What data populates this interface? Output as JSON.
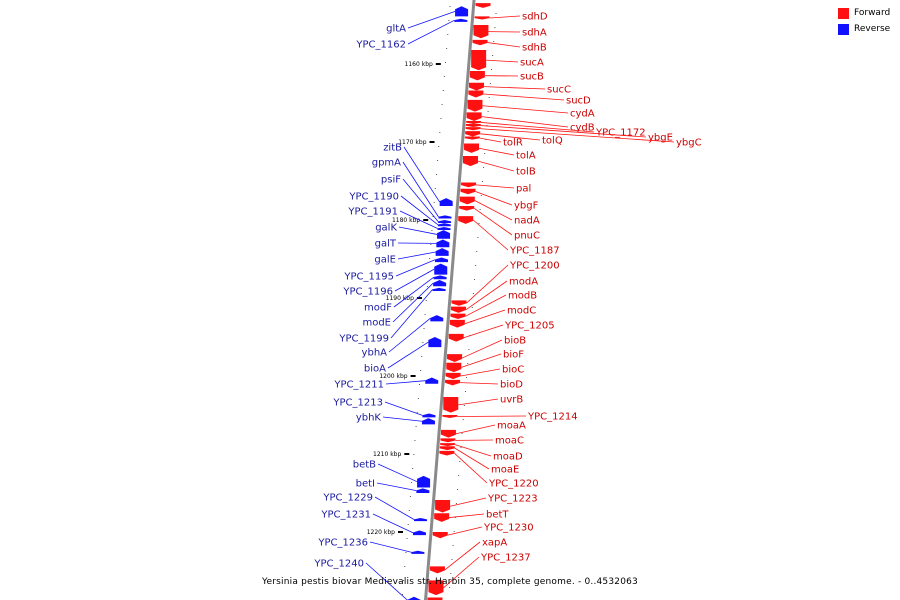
{
  "colors": {
    "forward": "#ff1111",
    "reverse": "#1111ff",
    "forward_label": "#cc0000",
    "reverse_label": "#1a1aa0",
    "backbone": "#8a8a8a"
  },
  "legend": [
    {
      "label": "Forward",
      "color": "#ff1111"
    },
    {
      "label": "Reverse",
      "color": "#1111ff"
    }
  ],
  "caption": "Yersinia pestis biovar Medievalis str. Harbin 35, complete genome. - 0..4532063",
  "ruler": [
    {
      "label": "1160 kbp",
      "kbp": 1160
    },
    {
      "label": "1170 kbp",
      "kbp": 1170
    },
    {
      "label": "1180 kbp",
      "kbp": 1180
    },
    {
      "label": "1190 kbp",
      "kbp": 1190
    },
    {
      "label": "1200 kbp",
      "kbp": 1200
    },
    {
      "label": "1210 kbp",
      "kbp": 1210
    },
    {
      "label": "1220 kbp",
      "kbp": 1220
    }
  ],
  "forward_genes": [
    {
      "name": "",
      "kbp": 1152.2,
      "len": 0.6
    },
    {
      "name": "sdhD",
      "kbp": 1153.9,
      "len": 0.4
    },
    {
      "name": "sdhA",
      "kbp": 1155.0,
      "len": 1.7
    },
    {
      "name": "sdhB",
      "kbp": 1156.9,
      "len": 0.7
    },
    {
      "name": "sucA",
      "kbp": 1158.2,
      "len": 2.6
    },
    {
      "name": "sucB",
      "kbp": 1160.9,
      "len": 1.2
    },
    {
      "name": "sucC",
      "kbp": 1162.4,
      "len": 1.0
    },
    {
      "name": "sucD",
      "kbp": 1163.4,
      "len": 0.9
    },
    {
      "name": "cydA",
      "kbp": 1164.6,
      "len": 1.5
    },
    {
      "name": "cydB",
      "kbp": 1166.2,
      "len": 1.1
    },
    {
      "name": "YPC_1172",
      "kbp": 1167.3,
      "len": 0.3
    },
    {
      "name": "ybgE",
      "kbp": 1167.7,
      "len": 0.3
    },
    {
      "name": "ybgC",
      "kbp": 1168.1,
      "len": 0.4
    },
    {
      "name": "tolQ",
      "kbp": 1168.6,
      "len": 0.7
    },
    {
      "name": "tolR",
      "kbp": 1169.3,
      "len": 0.4
    },
    {
      "name": "tolA",
      "kbp": 1170.2,
      "len": 1.2
    },
    {
      "name": "tolB",
      "kbp": 1171.8,
      "len": 1.3
    },
    {
      "name": "pal",
      "kbp": 1175.2,
      "len": 0.6
    },
    {
      "name": "ybgF",
      "kbp": 1176.0,
      "len": 0.7
    },
    {
      "name": "nadA",
      "kbp": 1177.0,
      "len": 1.0
    },
    {
      "name": "pnuC",
      "kbp": 1178.2,
      "len": 0.6
    },
    {
      "name": "YPC_1187",
      "kbp": 1179.5,
      "len": 1.0
    },
    {
      "name": "YPC_1200",
      "kbp": 1190.3,
      "len": 0.7
    },
    {
      "name": "modA",
      "kbp": 1191.1,
      "len": 0.8
    },
    {
      "name": "modB",
      "kbp": 1192.0,
      "len": 0.7
    },
    {
      "name": "modC",
      "kbp": 1192.8,
      "len": 1.0
    },
    {
      "name": "YPC_1205",
      "kbp": 1194.6,
      "len": 1.0
    },
    {
      "name": "bioB",
      "kbp": 1197.2,
      "len": 1.0
    },
    {
      "name": "bioF",
      "kbp": 1198.3,
      "len": 1.2
    },
    {
      "name": "bioC",
      "kbp": 1199.6,
      "len": 0.8
    },
    {
      "name": "bioD",
      "kbp": 1200.5,
      "len": 0.7
    },
    {
      "name": "uvrB",
      "kbp": 1202.7,
      "len": 2.0
    },
    {
      "name": "YPC_1214",
      "kbp": 1205.0,
      "len": 0.2
    },
    {
      "name": "moaA",
      "kbp": 1206.9,
      "len": 1.0
    },
    {
      "name": "moaC",
      "kbp": 1208.0,
      "len": 0.5
    },
    {
      "name": "moaD",
      "kbp": 1208.6,
      "len": 0.3
    },
    {
      "name": "moaE",
      "kbp": 1209.0,
      "len": 0.5
    },
    {
      "name": "YPC_1220",
      "kbp": 1209.6,
      "len": 0.6
    },
    {
      "name": "YPC_1223",
      "kbp": 1215.9,
      "len": 1.6
    },
    {
      "name": "betT",
      "kbp": 1217.6,
      "len": 1.1
    },
    {
      "name": "YPC_1230",
      "kbp": 1220.0,
      "len": 0.8
    },
    {
      "name": "xapA",
      "kbp": 1224.4,
      "len": 0.9
    },
    {
      "name": "YPC_1237",
      "kbp": 1226.2,
      "len": 1.9
    },
    {
      "name": "",
      "kbp": 1228.4,
      "len": 0.8
    }
  ],
  "reverse_genes": [
    {
      "name": "gltA",
      "kbp": 1152.6,
      "len": 1.3
    },
    {
      "name": "YPC_1162",
      "kbp": 1154.2,
      "len": 0.4
    },
    {
      "name": "zitB",
      "kbp": 1177.2,
      "len": 1.0
    },
    {
      "name": "gpmA",
      "kbp": 1179.4,
      "len": 0.4
    },
    {
      "name": "psiF",
      "kbp": 1180.0,
      "len": 0.3
    },
    {
      "name": "YPC_1190",
      "kbp": 1180.4,
      "len": 0.4
    },
    {
      "name": "YPC_1191",
      "kbp": 1180.9,
      "len": 0.3
    },
    {
      "name": "galK",
      "kbp": 1181.3,
      "len": 1.1
    },
    {
      "name": "galT",
      "kbp": 1182.5,
      "len": 1.0
    },
    {
      "name": "galE",
      "kbp": 1183.6,
      "len": 1.0
    },
    {
      "name": "YPC_1195",
      "kbp": 1184.8,
      "len": 0.6
    },
    {
      "name": "YPC_1196",
      "kbp": 1185.6,
      "len": 1.4
    },
    {
      "name": "modF",
      "kbp": 1187.1,
      "len": 0.5
    },
    {
      "name": "modE",
      "kbp": 1187.7,
      "len": 0.8
    },
    {
      "name": "YPC_1199",
      "kbp": 1188.7,
      "len": 0.4
    },
    {
      "name": "ybhA",
      "kbp": 1192.2,
      "len": 0.8
    },
    {
      "name": "bioA",
      "kbp": 1195.0,
      "len": 1.3
    },
    {
      "name": "YPC_1211",
      "kbp": 1200.2,
      "len": 0.8
    },
    {
      "name": "YPC_1213",
      "kbp": 1204.8,
      "len": 0.5
    },
    {
      "name": "ybhK",
      "kbp": 1205.4,
      "len": 0.8
    },
    {
      "name": "betB",
      "kbp": 1212.8,
      "len": 1.5
    },
    {
      "name": "betI",
      "kbp": 1214.4,
      "len": 0.6
    },
    {
      "name": "YPC_1229",
      "kbp": 1218.2,
      "len": 0.4
    },
    {
      "name": "YPC_1231",
      "kbp": 1219.8,
      "len": 0.6
    },
    {
      "name": "YPC_1236",
      "kbp": 1222.4,
      "len": 0.4
    },
    {
      "name": "YPC_1240",
      "kbp": 1228.3,
      "len": 0.9
    }
  ],
  "forward_labels": [
    "sdhD",
    "sdhA",
    "sdhB",
    "sucA",
    "sucB",
    "sucC",
    "sucD",
    "cydA",
    "cydB",
    "YPC_1172",
    "ybgE",
    "ybgC",
    "tolR",
    "tolQ",
    "tolA",
    "tolB",
    "pal",
    "ybgF",
    "nadA",
    "pnuC",
    "YPC_1187",
    "YPC_1200",
    "modA",
    "modB",
    "modC",
    "YPC_1205",
    "bioB",
    "bioF",
    "bioC",
    "bioD",
    "uvrB",
    "YPC_1214",
    "moaA",
    "moaC",
    "moaD",
    "moaE",
    "YPC_1220",
    "YPC_1223",
    "betT",
    "YPC_1230",
    "xapA",
    "YPC_1237"
  ],
  "reverse_labels": [
    "gltA",
    "YPC_1162",
    "zitB",
    "gpmA",
    "psiF",
    "YPC_1190",
    "YPC_1191",
    "galK",
    "galT",
    "galE",
    "YPC_1195",
    "YPC_1196",
    "modF",
    "modE",
    "YPC_1199",
    "ybhA",
    "bioA",
    "YPC_1211",
    "YPC_1213",
    "ybhK",
    "betB",
    "betI",
    "YPC_1229",
    "YPC_1231",
    "YPC_1236",
    "YPC_1240"
  ]
}
